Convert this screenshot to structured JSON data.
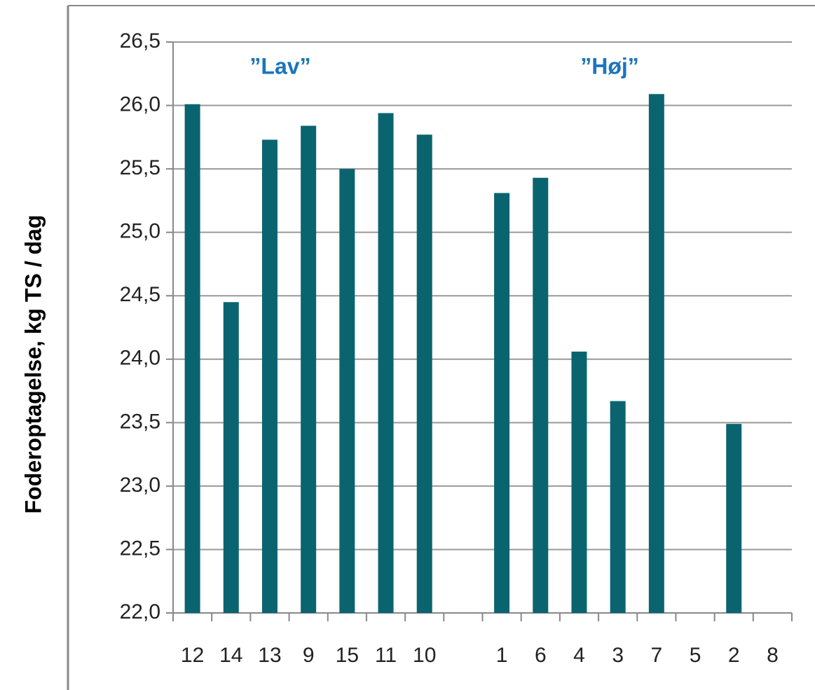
{
  "chart_data": {
    "type": "bar",
    "y_label": "Foderoptagelse, kg TS / dag",
    "annotations": [
      "”Lav”",
      "”Høj”"
    ],
    "categories": [
      "12",
      "14",
      "13",
      "9",
      "15",
      "11",
      "10",
      null,
      "1",
      "6",
      "4",
      "3",
      "7",
      "5",
      "2",
      "8"
    ],
    "values": [
      26.01,
      24.45,
      25.73,
      25.84,
      25.5,
      25.94,
      25.77,
      null,
      25.31,
      25.43,
      24.06,
      23.67,
      26.09,
      null,
      23.49,
      null
    ],
    "color": "#0a6470",
    "ylim": [
      22.0,
      26.5
    ],
    "yticks": [
      {
        "value": 22.0,
        "label": "22,0"
      },
      {
        "value": 22.5,
        "label": "22,5"
      },
      {
        "value": 23.0,
        "label": "23,0"
      },
      {
        "value": 23.5,
        "label": "23,5"
      },
      {
        "value": 24.0,
        "label": "24,0"
      },
      {
        "value": 24.5,
        "label": "24,5"
      },
      {
        "value": 25.0,
        "label": "25,0"
      },
      {
        "value": 25.5,
        "label": "25,5"
      },
      {
        "value": 26.0,
        "label": "26,0"
      },
      {
        "value": 26.5,
        "label": "26,5"
      }
    ],
    "grid": true
  }
}
